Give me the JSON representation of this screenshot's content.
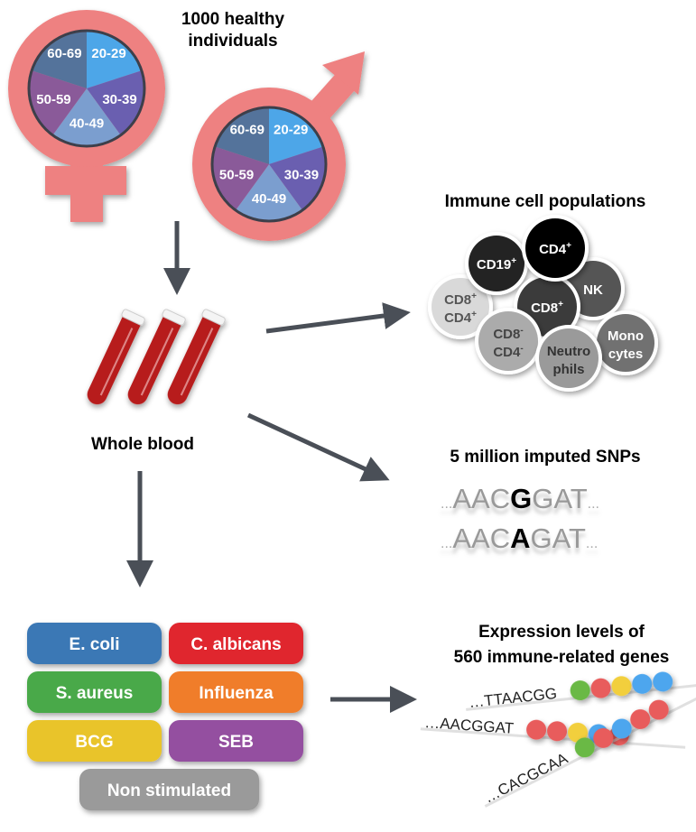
{
  "cohort": {
    "title_line1": "1000 healthy",
    "title_line2": "individuals",
    "age_groups": [
      "20-29",
      "30-39",
      "40-49",
      "50-59",
      "60-69"
    ],
    "age_colors": [
      "#4da6e8",
      "#6a5fb0",
      "#7b9ecf",
      "#8a5a99",
      "#54739b"
    ],
    "symbol_color": "#ee8181"
  },
  "sample": {
    "label": "Whole blood",
    "tube_color": "#b71c1c"
  },
  "cells": {
    "title": "Immune cell populations",
    "populations": [
      {
        "line1": "CD19",
        "sup1": "+",
        "line2": "",
        "sup2": "",
        "color": "#232323",
        "text": "#ffffff"
      },
      {
        "line1": "CD4",
        "sup1": "+",
        "line2": "",
        "sup2": "",
        "color": "#000000",
        "text": "#ffffff"
      },
      {
        "line1": "NK",
        "sup1": "",
        "line2": "",
        "sup2": "",
        "color": "#555555",
        "text": "#ffffff"
      },
      {
        "line1": "CD8",
        "sup1": "+",
        "line2": "CD4",
        "sup2": "+",
        "color": "#d9d9d9",
        "text": "#555555"
      },
      {
        "line1": "CD8",
        "sup1": "+",
        "line2": "",
        "sup2": "",
        "color": "#3b3b3b",
        "text": "#ffffff"
      },
      {
        "line1": "Mono",
        "sup1": "",
        "line2": "cytes",
        "sup2": "",
        "color": "#717171",
        "text": "#ffffff"
      },
      {
        "line1": "CD8",
        "sup1": "-",
        "line2": "CD4",
        "sup2": "-",
        "color": "#ababab",
        "text": "#444444"
      },
      {
        "line1": "Neutro",
        "sup1": "",
        "line2": "phils",
        "sup2": "",
        "color": "#9a9a9a",
        "text": "#333333"
      }
    ]
  },
  "snps": {
    "title": "5 million imputed SNPs",
    "seq1": {
      "pre": "AAC",
      "variant": "G",
      "post": "GAT",
      "dots": "..."
    },
    "seq2": {
      "pre": "AAC",
      "variant": "A",
      "post": "GAT",
      "dots": "..."
    }
  },
  "stimuli": [
    {
      "label": "E. coli",
      "color": "#3a78b5"
    },
    {
      "label": "C. albicans",
      "color": "#e0282e"
    },
    {
      "label": "S. aureus",
      "color": "#4aa94a"
    },
    {
      "label": "Influenza",
      "color": "#f07d2a"
    },
    {
      "label": "BCG",
      "color": "#e9c42c"
    },
    {
      "label": "SEB",
      "color": "#9450a0"
    },
    {
      "label": "Non stimulated",
      "color": "#9a9a9a"
    }
  ],
  "expression": {
    "title_line1": "Expression levels of",
    "title_line2": "560 immune-related genes",
    "sequences": [
      "…TTAACGG",
      "…AACGGAT",
      "…CACGCAA"
    ],
    "bead_colors": {
      "green": "#6bb944",
      "red": "#e85b5b",
      "yellow": "#f2cf3c",
      "blue": "#4ea6ee"
    },
    "beads": [
      [
        "green",
        "red",
        "yellow",
        "blue",
        "blue"
      ],
      [
        "red",
        "red",
        "yellow",
        "blue",
        "red"
      ],
      [
        "green",
        "red",
        "blue",
        "red",
        "red"
      ]
    ]
  },
  "arrow_color": "#4a4f57"
}
